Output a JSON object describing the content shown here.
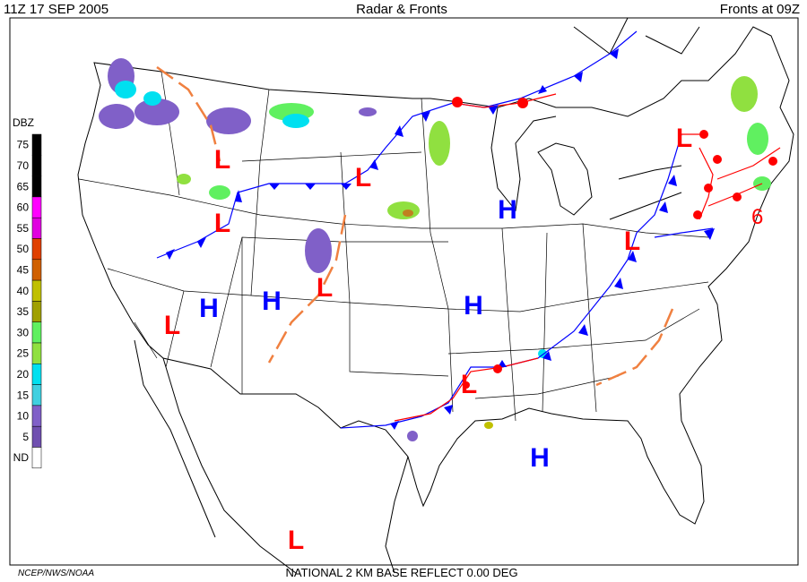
{
  "header": {
    "left": "11Z  17 SEP  2005",
    "center": "Radar & Fronts",
    "right": "Fronts at 09Z"
  },
  "legend": {
    "title": "DBZ",
    "levels": [
      {
        "label": "75",
        "color": "#000000"
      },
      {
        "label": "70",
        "color": "#000000"
      },
      {
        "label": "65",
        "color": "#000000"
      },
      {
        "label": "60",
        "color": "#ff00ff"
      },
      {
        "label": "55",
        "color": "#e000e0"
      },
      {
        "label": "50",
        "color": "#e04000"
      },
      {
        "label": "45",
        "color": "#d06000"
      },
      {
        "label": "40",
        "color": "#c0c000"
      },
      {
        "label": "35",
        "color": "#a0a000"
      },
      {
        "label": "30",
        "color": "#60f060"
      },
      {
        "label": "25",
        "color": "#90e040"
      },
      {
        "label": "20",
        "color": "#00e0f0"
      },
      {
        "label": "15",
        "color": "#40d0e0"
      },
      {
        "label": "10",
        "color": "#8060c8"
      },
      {
        "label": "5",
        "color": "#7050b0"
      },
      {
        "label": "ND",
        "color": "#ffffff"
      }
    ]
  },
  "pressure_centers": [
    "L",
    "L",
    "L",
    "H",
    "L",
    "L",
    "H",
    "H",
    "L",
    "L",
    "H",
    "L",
    "H",
    "L"
  ],
  "storm_symbol": "6",
  "footer": {
    "left": "NCEP/NWS/NOAA",
    "center": "NATIONAL 2 KM BASE REFLECT 0.00 DEG"
  }
}
